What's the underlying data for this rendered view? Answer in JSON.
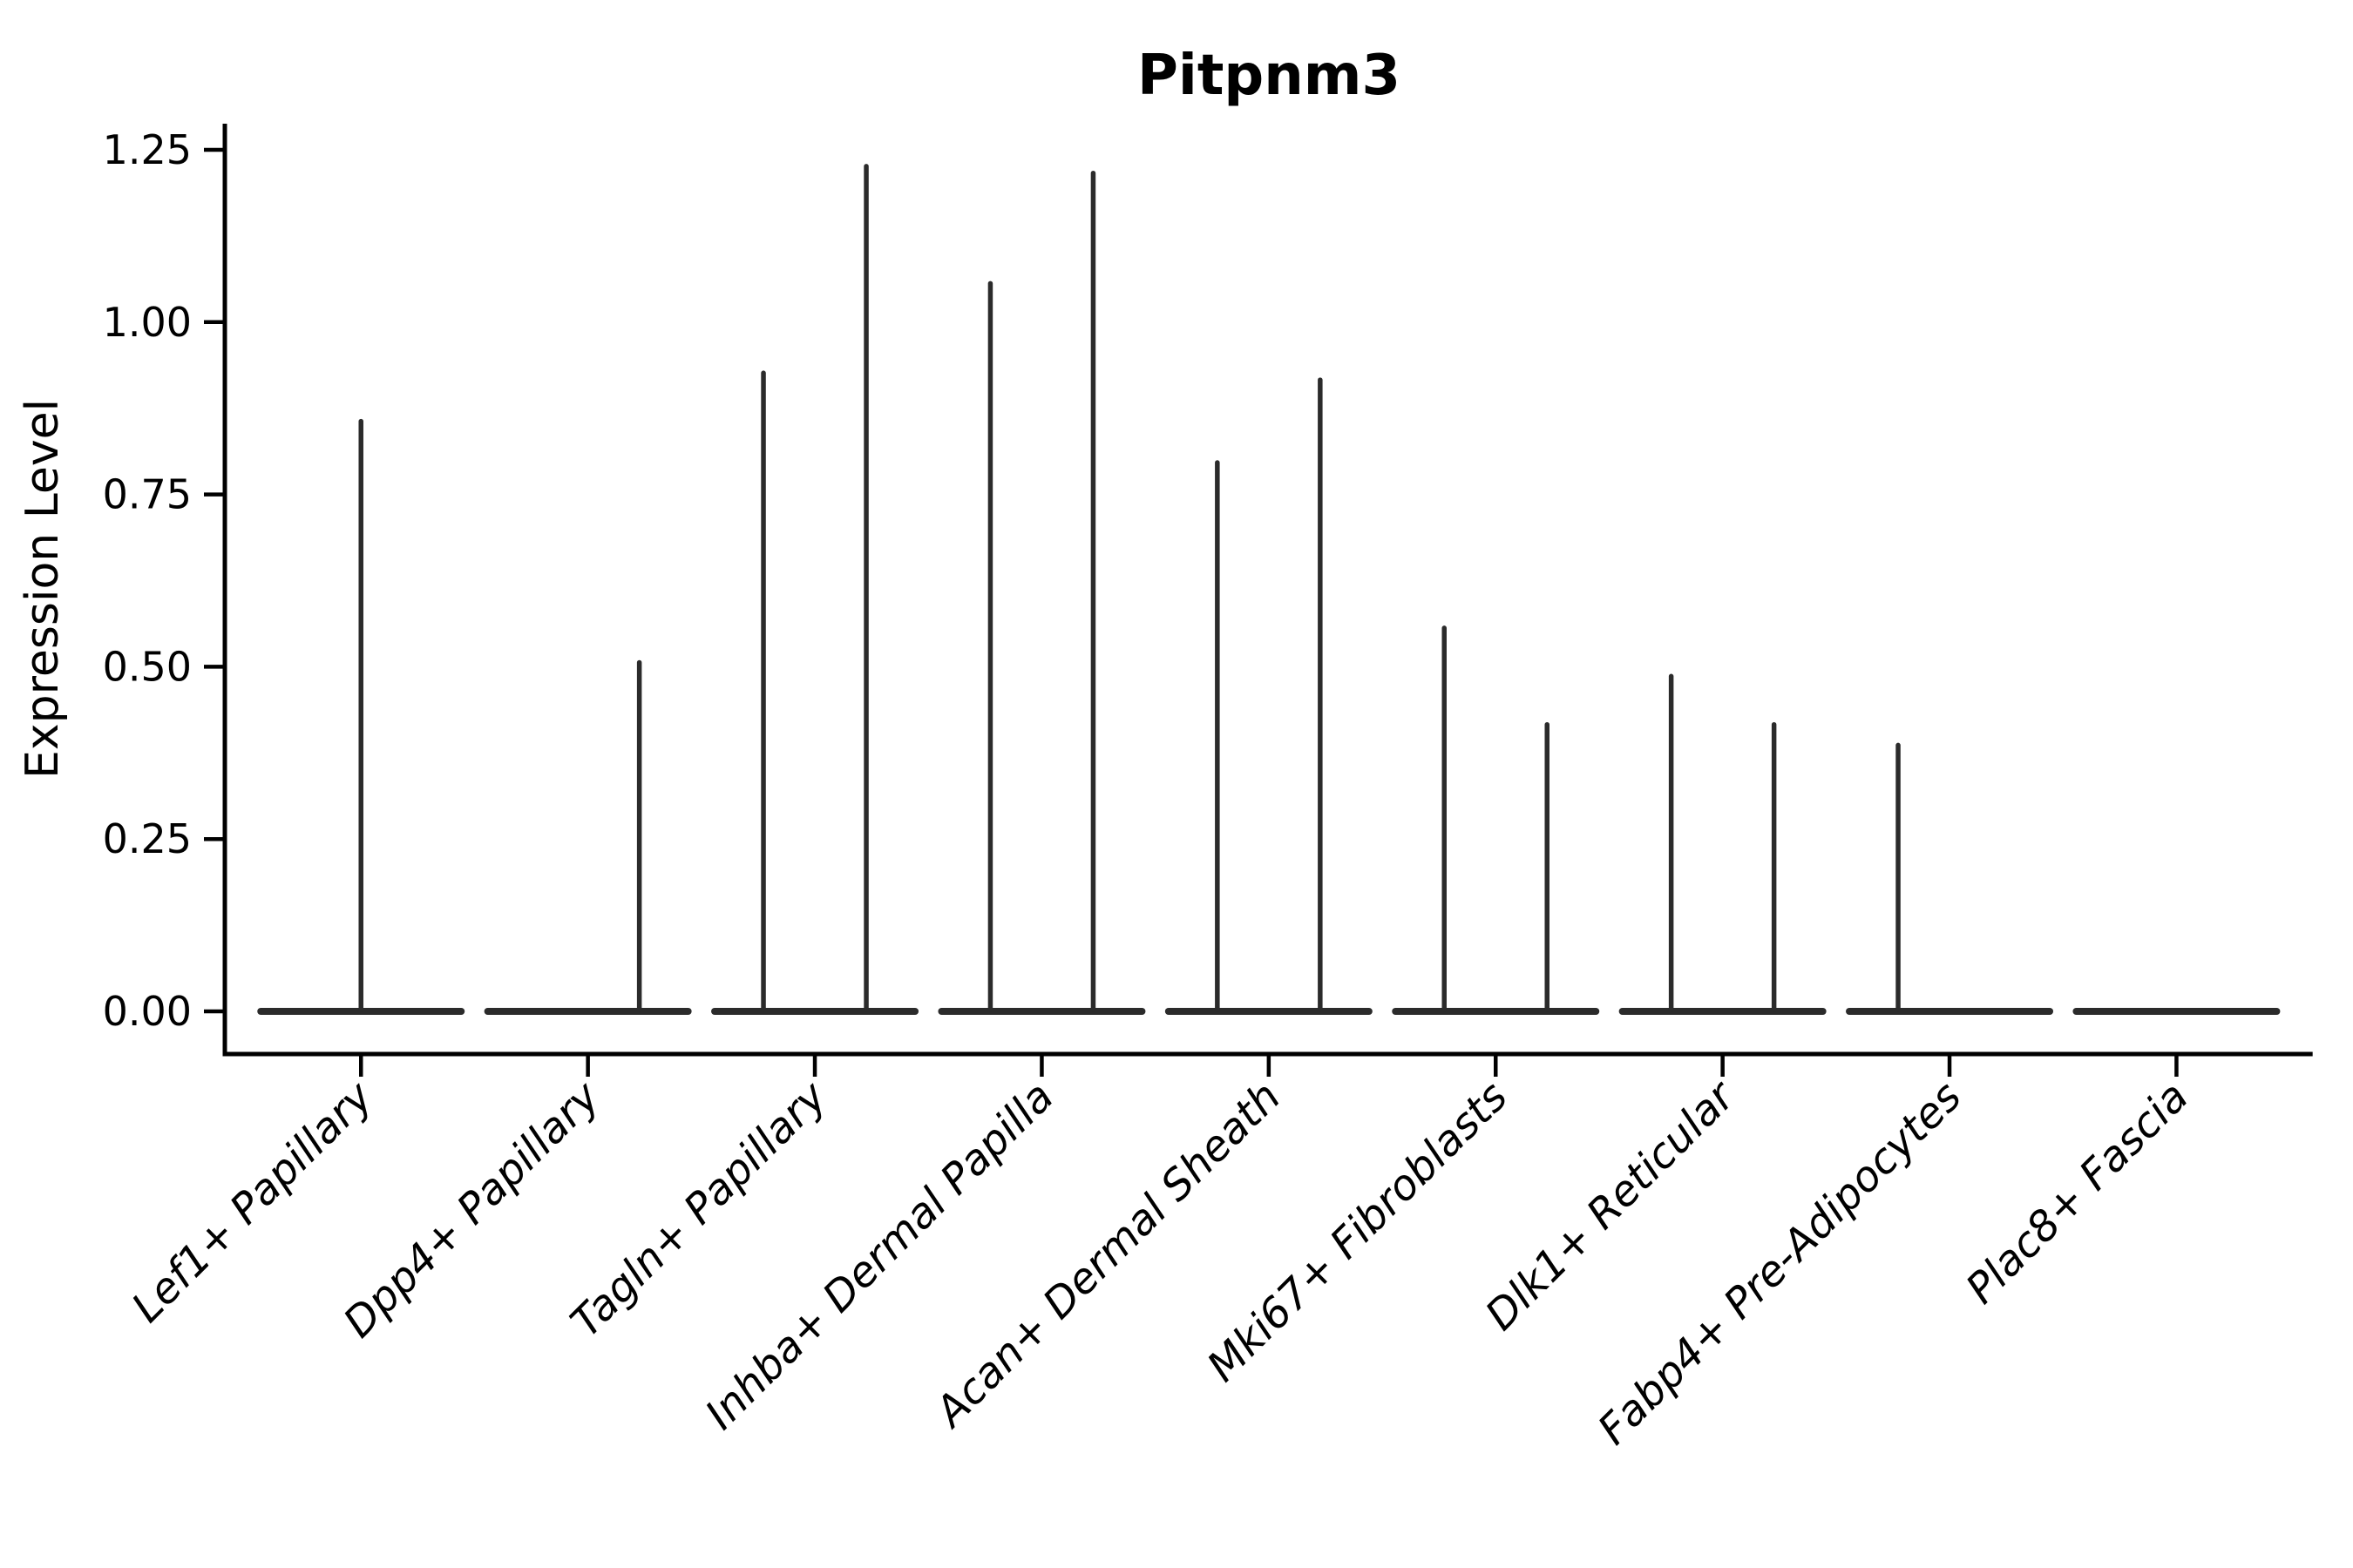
{
  "title": "Pitpnm3",
  "chart_data": {
    "type": "violin",
    "title": "Pitpnm3",
    "xlabel": "",
    "ylabel": "Expression Level",
    "ylim": [
      -0.06,
      1.29
    ],
    "yticks": [
      {
        "value": 0.0,
        "label": "0.00"
      },
      {
        "value": 0.25,
        "label": "0.25"
      },
      {
        "value": 0.5,
        "label": "0.50"
      },
      {
        "value": 0.75,
        "label": "0.75"
      },
      {
        "value": 1.0,
        "label": "1.00"
      },
      {
        "value": 1.25,
        "label": "1.25"
      }
    ],
    "categories": [
      "Lef1+ Papillary",
      "Dpp4+ Papillary",
      "Tagln+ Papillary",
      "Inhba+ Dermal Papilla",
      "Acan+ Dermal Sheath",
      "Mki67+ Fibroblasts",
      "Dlk1+ Reticular",
      "Fabp4+ Pre-Adipocytes",
      "Plac8+ Fascia"
    ],
    "violins": [
      {
        "category": "Lef1+ Papillary",
        "baseline": 0,
        "spikes": [
          {
            "dodge": 0,
            "max": 0.86
          }
        ]
      },
      {
        "category": "Dpp4+ Papillary",
        "baseline": 0,
        "spikes": [
          {
            "dodge": 1,
            "max": 0.51
          }
        ]
      },
      {
        "category": "Tagln+ Papillary",
        "baseline": 0,
        "spikes": [
          {
            "dodge": -1,
            "max": 0.93
          },
          {
            "dodge": 1,
            "max": 1.23
          }
        ]
      },
      {
        "category": "Inhba+ Dermal Papilla",
        "baseline": 0,
        "spikes": [
          {
            "dodge": -1,
            "max": 1.06
          },
          {
            "dodge": 1,
            "max": 1.22
          }
        ]
      },
      {
        "category": "Acan+ Dermal Sheath",
        "baseline": 0,
        "spikes": [
          {
            "dodge": -1,
            "max": 0.8
          },
          {
            "dodge": 1,
            "max": 0.92
          }
        ]
      },
      {
        "category": "Mki67+ Fibroblasts",
        "baseline": 0,
        "spikes": [
          {
            "dodge": -1,
            "max": 0.56
          },
          {
            "dodge": 1,
            "max": 0.42
          }
        ]
      },
      {
        "category": "Dlk1+ Reticular",
        "baseline": 0,
        "spikes": [
          {
            "dodge": -1,
            "max": 0.49
          },
          {
            "dodge": 1,
            "max": 0.42
          }
        ]
      },
      {
        "category": "Fabp4+ Pre-Adipocytes",
        "baseline": 0,
        "spikes": [
          {
            "dodge": -1,
            "max": 0.39
          }
        ]
      },
      {
        "category": "Plac8+ Fascia",
        "baseline": 0,
        "spikes": []
      }
    ],
    "legend": null,
    "grid": false,
    "colors": {
      "violin_stroke": "#2b2b2b",
      "axis": "#000000",
      "background": "#ffffff"
    }
  }
}
